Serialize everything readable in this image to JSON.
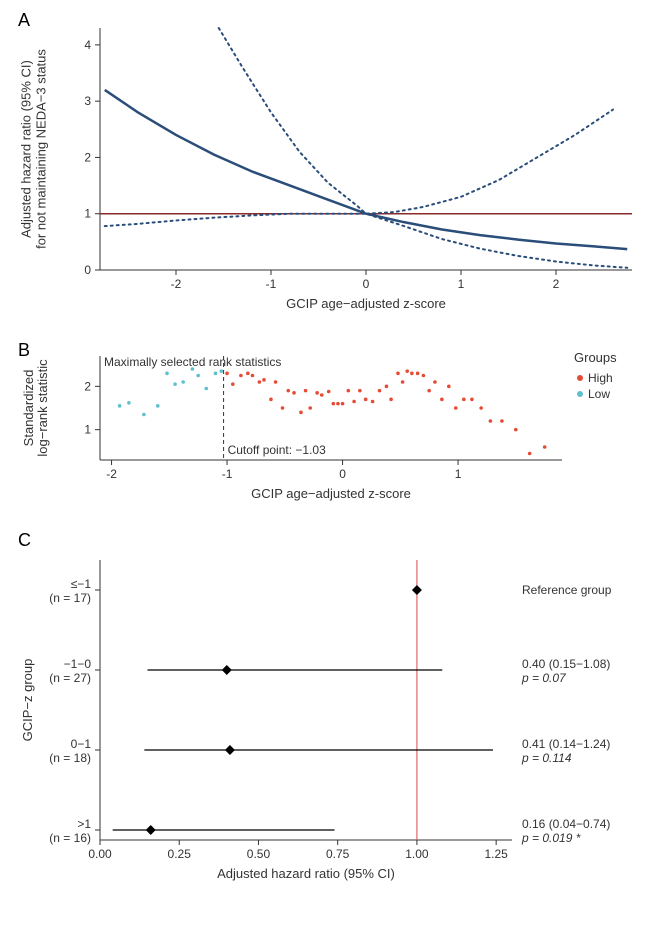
{
  "panelA": {
    "label": "A",
    "xlabel": "GCIP age−adjusted z-score",
    "ylabel": "Adjusted hazard ratio (95% CI)\nfor not maintaining NEDA−3 status",
    "xlim": [
      -2.8,
      2.8
    ],
    "ylim": [
      0,
      4.3
    ],
    "xticks": [
      -2,
      -1,
      0,
      1,
      2
    ],
    "yticks": [
      0,
      1,
      2,
      3,
      4
    ],
    "ref_y": 1,
    "solid_color": "#2a4d7a",
    "dotted_color": "#2a4d7a",
    "ref_color": "#8b2a2a",
    "curves": {
      "mid": [
        [
          -2.75,
          3.2
        ],
        [
          -2.4,
          2.8
        ],
        [
          -2.0,
          2.4
        ],
        [
          -1.6,
          2.05
        ],
        [
          -1.2,
          1.75
        ],
        [
          -0.8,
          1.5
        ],
        [
          -0.4,
          1.25
        ],
        [
          0,
          1.0
        ],
        [
          0.4,
          0.85
        ],
        [
          0.8,
          0.72
        ],
        [
          1.2,
          0.62
        ],
        [
          1.6,
          0.54
        ],
        [
          2.0,
          0.47
        ],
        [
          2.4,
          0.42
        ],
        [
          2.75,
          0.37
        ]
      ],
      "upper": [
        [
          -1.55,
          4.3
        ],
        [
          -1.3,
          3.6
        ],
        [
          -1.0,
          2.8
        ],
        [
          -0.7,
          2.1
        ],
        [
          -0.4,
          1.55
        ],
        [
          -0.1,
          1.15
        ],
        [
          0,
          1.0
        ],
        [
          0.3,
          1.03
        ],
        [
          0.6,
          1.12
        ],
        [
          1.0,
          1.3
        ],
        [
          1.4,
          1.6
        ],
        [
          1.8,
          2.0
        ],
        [
          2.2,
          2.4
        ],
        [
          2.6,
          2.85
        ]
      ],
      "lower": [
        [
          -2.75,
          0.78
        ],
        [
          -2.4,
          0.82
        ],
        [
          -2.0,
          0.88
        ],
        [
          -1.6,
          0.93
        ],
        [
          -1.2,
          0.97
        ],
        [
          -0.8,
          1.0
        ],
        [
          -0.4,
          1.0
        ],
        [
          0,
          1.0
        ],
        [
          0.4,
          0.78
        ],
        [
          0.8,
          0.55
        ],
        [
          1.2,
          0.38
        ],
        [
          1.6,
          0.25
        ],
        [
          2.0,
          0.15
        ],
        [
          2.4,
          0.08
        ],
        [
          2.75,
          0.04
        ]
      ]
    }
  },
  "panelB": {
    "label": "B",
    "xlabel": "GCIP age−adjusted z-score",
    "ylabel": "Standardized\nlog−rank statistic",
    "xlim": [
      -2.1,
      1.9
    ],
    "ylim": [
      0.3,
      2.7
    ],
    "xticks": [
      -2,
      -1,
      0,
      1
    ],
    "yticks": [
      1,
      2
    ],
    "title_text": "Maximally selected rank statistics",
    "cutoff_x": -1.03,
    "cutoff_label": "Cutoff point: −1.03",
    "legend_title": "Groups",
    "legend_items": [
      {
        "label": "High",
        "color": "#e64b35"
      },
      {
        "label": "Low",
        "color": "#5dc0cf"
      }
    ],
    "points_low": [
      [
        -1.93,
        1.55
      ],
      [
        -1.85,
        1.62
      ],
      [
        -1.72,
        1.35
      ],
      [
        -1.6,
        1.55
      ],
      [
        -1.52,
        2.3
      ],
      [
        -1.45,
        2.05
      ],
      [
        -1.38,
        2.1
      ],
      [
        -1.3,
        2.4
      ],
      [
        -1.25,
        2.25
      ],
      [
        -1.18,
        1.95
      ],
      [
        -1.1,
        2.3
      ],
      [
        -1.05,
        2.35
      ]
    ],
    "points_high": [
      [
        -1.0,
        2.3
      ],
      [
        -0.95,
        2.05
      ],
      [
        -0.88,
        2.25
      ],
      [
        -0.82,
        2.3
      ],
      [
        -0.78,
        2.25
      ],
      [
        -0.72,
        2.1
      ],
      [
        -0.68,
        2.15
      ],
      [
        -0.62,
        1.7
      ],
      [
        -0.58,
        2.1
      ],
      [
        -0.52,
        1.5
      ],
      [
        -0.47,
        1.9
      ],
      [
        -0.42,
        1.85
      ],
      [
        -0.36,
        1.4
      ],
      [
        -0.32,
        1.9
      ],
      [
        -0.28,
        1.5
      ],
      [
        -0.22,
        1.85
      ],
      [
        -0.18,
        1.8
      ],
      [
        -0.12,
        1.88
      ],
      [
        -0.08,
        1.6
      ],
      [
        -0.04,
        1.6
      ],
      [
        0.0,
        1.6
      ],
      [
        0.05,
        1.9
      ],
      [
        0.1,
        1.65
      ],
      [
        0.15,
        1.9
      ],
      [
        0.2,
        1.7
      ],
      [
        0.26,
        1.65
      ],
      [
        0.32,
        1.9
      ],
      [
        0.38,
        2.0
      ],
      [
        0.42,
        1.7
      ],
      [
        0.48,
        2.3
      ],
      [
        0.52,
        2.1
      ],
      [
        0.56,
        2.35
      ],
      [
        0.6,
        2.3
      ],
      [
        0.65,
        2.3
      ],
      [
        0.7,
        2.25
      ],
      [
        0.75,
        1.9
      ],
      [
        0.8,
        2.1
      ],
      [
        0.86,
        1.7
      ],
      [
        0.92,
        2.0
      ],
      [
        0.98,
        1.5
      ],
      [
        1.05,
        1.7
      ],
      [
        1.12,
        1.7
      ],
      [
        1.2,
        1.5
      ],
      [
        1.28,
        1.2
      ],
      [
        1.38,
        1.2
      ],
      [
        1.5,
        1.0
      ],
      [
        1.62,
        0.45
      ],
      [
        1.75,
        0.6
      ]
    ]
  },
  "panelC": {
    "label": "C",
    "xlabel": "Adjusted hazard ratio (95% CI)",
    "ylabel": "GCIP−z group",
    "xlim": [
      0,
      1.3
    ],
    "xticks": [
      0.0,
      0.25,
      0.5,
      0.75,
      1.0,
      1.25
    ],
    "ref_x": 1.0,
    "ref_color": "#d94a4a",
    "rows": [
      {
        "label": "≤−1",
        "n": "(n = 17)",
        "hr": 1.0,
        "lo": null,
        "hi": null,
        "text": "Reference group",
        "p": null
      },
      {
        "label": "−1−0",
        "n": "(n = 27)",
        "hr": 0.4,
        "lo": 0.15,
        "hi": 1.08,
        "text": "0.40 (0.15−1.08)",
        "p": "p = 0.07"
      },
      {
        "label": "0−1",
        "n": "(n = 18)",
        "hr": 0.41,
        "lo": 0.14,
        "hi": 1.24,
        "text": "0.41 (0.14−1.24)",
        "p": "p = 0.114"
      },
      {
        "label": ">1",
        "n": "(n = 16)",
        "hr": 0.16,
        "lo": 0.04,
        "hi": 0.74,
        "text": "0.16 (0.04−0.74)",
        "p": "p = 0.019 *"
      }
    ]
  }
}
